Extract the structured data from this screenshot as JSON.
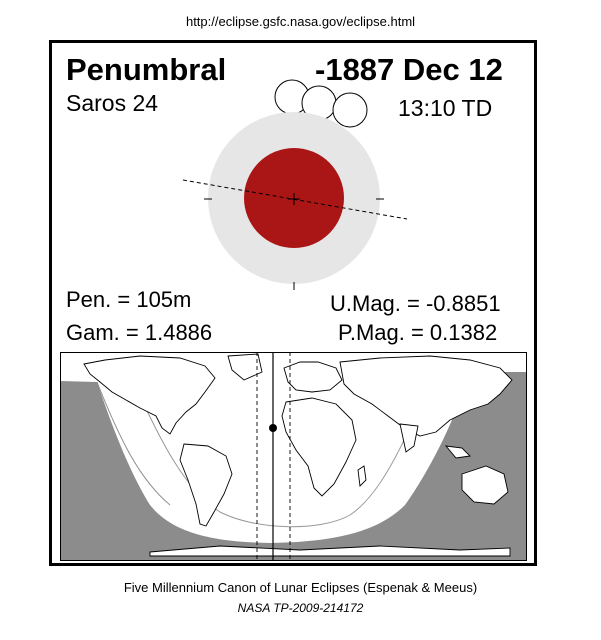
{
  "url": "http://eclipse.gsfc.nasa.gov/eclipse.html",
  "eclipse": {
    "type": "Penumbral",
    "date": "-1887 Dec 12",
    "saros": "Saros  24",
    "time": "13:10 TD",
    "pen": "Pen. = 105m",
    "gam": "Gam. = 1.4886",
    "umag": "U.Mag. = -0.8851",
    "pmag": "P.Mag. = 0.1382"
  },
  "colors": {
    "penumbra": "#e6e6e6",
    "umbra": "#aa1515",
    "night": "#8c8c8c",
    "land_outline": "#000000"
  },
  "caption": "Five Millennium Canon of Lunar Eclipses (Espenak & Meeus)",
  "reference": "NASA TP-2009-214172"
}
